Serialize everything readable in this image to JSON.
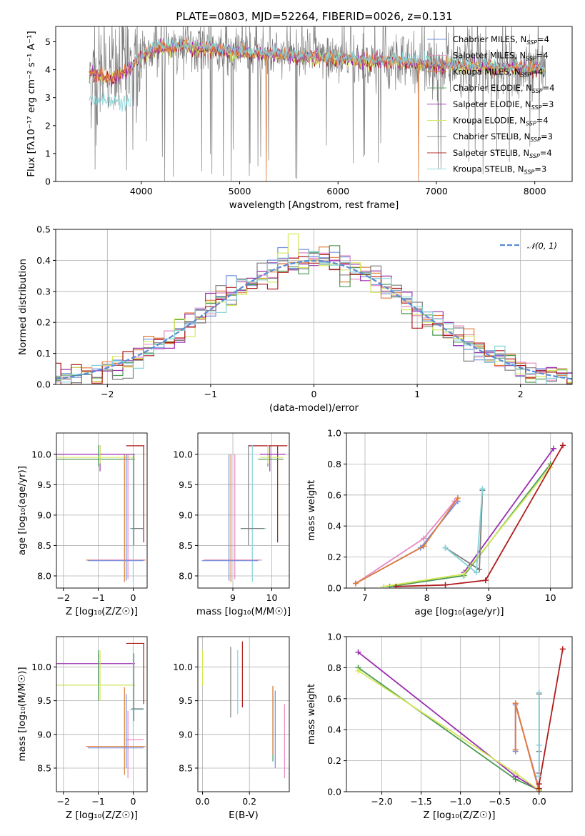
{
  "figure_title": "PLATE=0803, MJD=52264, FIBERID=0026, z=0.131",
  "colors": {
    "Chabrier MILES": "#6f8fe0",
    "Salpeter MILES": "#e78ac3",
    "Kroupa MILES": "#e07b39",
    "Chabrier ELODIE": "#4d9a55",
    "Salpeter ELODIE": "#9b30b0",
    "Kroupa ELODIE": "#d4e85a",
    "Chabrier STELIB": "#7f7f7f",
    "Salpeter STELIB": "#b01c1c",
    "Kroupa STELIB": "#86d3d8",
    "normal_curve": "#5b8bd6"
  },
  "chart_data": [
    {
      "id": "spectrum",
      "type": "line",
      "title": "PLATE=0803, MJD=52264, FIBERID=0026, z=0.131",
      "xlabel": "wavelength [Angstrom, rest frame]",
      "ylabel": "Flux [fλ10⁻¹⁷ erg cm⁻² s⁻¹ A⁻¹]",
      "xlim": [
        3130,
        8380
      ],
      "ylim": [
        0,
        5.55
      ],
      "xticks": [
        4000,
        5000,
        6000,
        7000,
        8000
      ],
      "yticks": [
        0,
        1,
        2,
        3,
        4,
        5
      ],
      "legend_position": "upper right",
      "legend": [
        {
          "label": "Chabrier MILES, N",
          "sub": "SSP",
          "tail": "=4",
          "series": "Chabrier MILES"
        },
        {
          "label": "Salpeter MILES, N",
          "sub": "SSP",
          "tail": "=4",
          "series": "Salpeter MILES"
        },
        {
          "label": "Kroupa MILES, N",
          "sub": "SSP",
          "tail": "=4",
          "series": "Kroupa MILES"
        },
        {
          "label": "Chabrier ELODIE, N",
          "sub": "SSP",
          "tail": "=4",
          "series": "Chabrier ELODIE"
        },
        {
          "label": "Salpeter ELODIE, N",
          "sub": "SSP",
          "tail": "=3",
          "series": "Salpeter ELODIE"
        },
        {
          "label": "Kroupa ELODIE, N",
          "sub": "SSP",
          "tail": "=4",
          "series": "Kroupa ELODIE"
        },
        {
          "label": "Chabrier STELIB, N",
          "sub": "SSP",
          "tail": "=3",
          "series": "Chabrier STELIB"
        },
        {
          "label": "Salpeter STELIB, N",
          "sub": "SSP",
          "tail": "=4",
          "series": "Salpeter STELIB"
        },
        {
          "label": "Kroupa STELIB, N",
          "sub": "SSP",
          "tail": "=3",
          "series": "Kroupa STELIB"
        }
      ],
      "continuum_model": [
        [
          3470,
          3.9
        ],
        [
          3550,
          3.8
        ],
        [
          3700,
          3.7
        ],
        [
          3850,
          3.95
        ],
        [
          3950,
          4.3
        ],
        [
          4050,
          4.6
        ],
        [
          4200,
          4.8
        ],
        [
          4400,
          4.85
        ],
        [
          4700,
          4.75
        ],
        [
          5000,
          4.6
        ],
        [
          5300,
          4.55
        ],
        [
          5600,
          4.5
        ],
        [
          6000,
          4.4
        ],
        [
          6500,
          4.3
        ],
        [
          7000,
          4.2
        ],
        [
          7400,
          4.1
        ],
        [
          7800,
          4.05
        ],
        [
          8100,
          4.0
        ]
      ]
    },
    {
      "id": "residuals",
      "type": "histogram",
      "xlabel": "(data-model)/error",
      "ylabel": "Normed distribution",
      "xlim": [
        -2.5,
        2.5
      ],
      "ylim": [
        0,
        0.5
      ],
      "xticks": [
        -2,
        -1,
        0,
        1,
        2
      ],
      "yticks": [
        0.0,
        0.1,
        0.2,
        0.3,
        0.4,
        0.5
      ],
      "legend_position": "upper right",
      "legend": [
        {
          "label": "𝒩(0, 1)",
          "series": "normal_curve"
        }
      ],
      "reference_curve": "standard normal N(0,1)"
    },
    {
      "id": "age_vs_Z",
      "type": "errorbar",
      "xlabel": "Z [log₁₀(Z/Z☉)]",
      "ylabel": "age  [log₁₀(age/yr)]",
      "xlim": [
        -2.2,
        0.4
      ],
      "ylim": [
        7.8,
        10.35
      ],
      "xticks": [
        -2,
        -1,
        0
      ],
      "yticks": [
        8.0,
        8.5,
        9.0,
        9.5,
        10.0
      ]
    },
    {
      "id": "age_vs_mass",
      "type": "errorbar",
      "xlabel": "mass [log₁₀(M/M☉)]",
      "ylabel": "",
      "xlim": [
        8.1,
        10.45
      ],
      "ylim": [
        7.8,
        10.35
      ],
      "xticks": [
        9,
        10
      ],
      "yticks": [
        8.0,
        8.5,
        9.0,
        9.5,
        10.0
      ]
    },
    {
      "id": "weight_vs_age",
      "type": "line",
      "xlabel": "age  [log₁₀(age/yr)]",
      "ylabel": "mass weight",
      "xlim": [
        6.7,
        10.35
      ],
      "ylim": [
        0,
        1.0
      ],
      "xticks": [
        7,
        8,
        9,
        10
      ],
      "yticks": [
        0.0,
        0.2,
        0.4,
        0.6,
        0.8,
        1.0
      ],
      "series": [
        {
          "name": "Chabrier MILES",
          "x": [
            6.85,
            7.9,
            8.5
          ],
          "y": [
            0.03,
            0.26,
            0.56
          ]
        },
        {
          "name": "Salpeter MILES",
          "x": [
            6.85,
            7.95,
            8.45
          ],
          "y": [
            0.03,
            0.32,
            0.56
          ]
        },
        {
          "name": "Kroupa MILES",
          "x": [
            6.85,
            7.95,
            8.5
          ],
          "y": [
            0.03,
            0.27,
            0.58
          ]
        },
        {
          "name": "Chabrier ELODIE",
          "x": [
            7.4,
            8.6,
            10.0
          ],
          "y": [
            0.01,
            0.08,
            0.8
          ]
        },
        {
          "name": "Salpeter ELODIE",
          "x": [
            8.6,
            10.05
          ],
          "y": [
            0.1,
            0.9
          ]
        },
        {
          "name": "Kroupa ELODIE",
          "x": [
            7.3,
            8.6,
            10.0
          ],
          "y": [
            0.01,
            0.09,
            0.78
          ]
        },
        {
          "name": "Chabrier STELIB",
          "x": [
            8.3,
            8.85,
            8.9
          ],
          "y": [
            0.26,
            0.12,
            0.63
          ]
        },
        {
          "name": "Salpeter STELIB",
          "x": [
            7.5,
            8.3,
            8.95,
            10.2
          ],
          "y": [
            0.01,
            0.02,
            0.05,
            0.92
          ]
        },
        {
          "name": "Kroupa STELIB",
          "x": [
            8.3,
            8.8,
            8.9
          ],
          "y": [
            0.26,
            0.1,
            0.64
          ]
        }
      ]
    },
    {
      "id": "mass_vs_Z",
      "type": "errorbar",
      "xlabel": "Z [log₁₀(Z/Z☉)]",
      "ylabel": "mass [log₁₀(M/M☉)]",
      "xlim": [
        -2.2,
        0.4
      ],
      "ylim": [
        8.15,
        10.45
      ],
      "xticks": [
        -2,
        -1,
        0
      ],
      "yticks": [
        8.5,
        9.0,
        9.5,
        10.0
      ]
    },
    {
      "id": "mass_vs_ebv",
      "type": "errorbar",
      "xlabel": "E(B-V)",
      "ylabel": "",
      "xlim": [
        -0.02,
        0.37
      ],
      "ylim": [
        8.15,
        10.45
      ],
      "xticks": [
        0.0,
        0.2
      ],
      "yticks": [
        8.5,
        9.0,
        9.5,
        10.0
      ]
    },
    {
      "id": "weight_vs_Z",
      "type": "line",
      "xlabel": "Z [log₁₀(Z/Z☉)]",
      "ylabel": "mass weight",
      "xlim": [
        -2.45,
        0.42
      ],
      "ylim": [
        0,
        1.0
      ],
      "xticks": [
        -2.0,
        -1.5,
        -1.0,
        -0.5,
        0.0
      ],
      "yticks": [
        0.0,
        0.2,
        0.4,
        0.6,
        0.8,
        1.0
      ],
      "series": [
        {
          "name": "Chabrier MILES",
          "x": [
            -0.3,
            -0.3,
            0.0
          ],
          "y": [
            0.26,
            0.56,
            0.02
          ]
        },
        {
          "name": "Salpeter MILES",
          "x": [
            -0.3,
            -0.3,
            0.0
          ],
          "y": [
            0.27,
            0.57,
            0.01
          ]
        },
        {
          "name": "Kroupa MILES",
          "x": [
            -0.3,
            -0.3,
            0.0
          ],
          "y": [
            0.27,
            0.57,
            0.0
          ]
        },
        {
          "name": "Chabrier ELODIE",
          "x": [
            -2.3,
            -0.3,
            0.0
          ],
          "y": [
            0.8,
            0.08,
            0.01
          ]
        },
        {
          "name": "Salpeter ELODIE",
          "x": [
            -2.3,
            -0.3,
            0.0
          ],
          "y": [
            0.9,
            0.1,
            0.01
          ]
        },
        {
          "name": "Kroupa ELODIE",
          "x": [
            -2.3,
            -0.3,
            0.0
          ],
          "y": [
            0.78,
            0.12,
            0.01
          ]
        },
        {
          "name": "Chabrier STELIB",
          "x": [
            0.0,
            0.0,
            0.0
          ],
          "y": [
            0.12,
            0.26,
            0.63
          ]
        },
        {
          "name": "Salpeter STELIB",
          "x": [
            0.0,
            0.0,
            0.3
          ],
          "y": [
            0.02,
            0.05,
            0.92
          ]
        },
        {
          "name": "Kroupa STELIB",
          "x": [
            0.0,
            0.0,
            0.0
          ],
          "y": [
            0.1,
            0.3,
            0.64
          ]
        }
      ]
    }
  ]
}
